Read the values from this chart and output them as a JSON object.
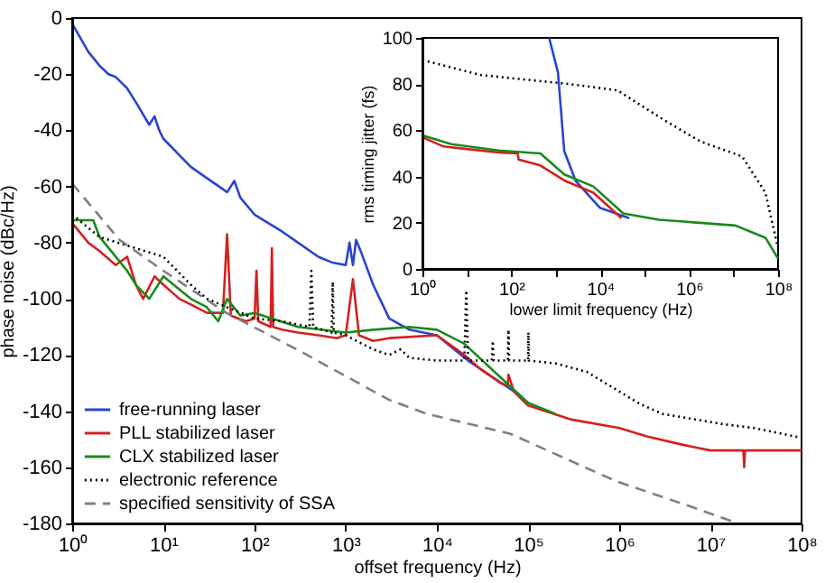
{
  "chart_data": [
    {
      "type": "line",
      "xlabel": "offset frequency (Hz)",
      "ylabel": "phase noise (dBc/Hz)",
      "log": "x",
      "grid": false,
      "legend": "bottom left",
      "xlim": [
        1,
        100000000
      ],
      "ylim": [
        -180,
        0
      ],
      "xticks": [
        {
          "value": 1,
          "label": "10⁰"
        },
        {
          "value": 10,
          "label": "10¹"
        },
        {
          "value": 100,
          "label": "10²"
        },
        {
          "value": 1000,
          "label": "10³"
        },
        {
          "value": 10000,
          "label": "10⁴"
        },
        {
          "value": 100000,
          "label": "10⁵"
        },
        {
          "value": 1000000,
          "label": "10⁶"
        },
        {
          "value": 10000000,
          "label": "10⁷"
        },
        {
          "value": 100000000,
          "label": "10⁸"
        }
      ],
      "yticks": [
        -180,
        -160,
        -140,
        -120,
        -100,
        -80,
        -60,
        -40,
        -20,
        0
      ],
      "series": [
        {
          "name": "free-running laser",
          "color": "#2a44d0",
          "line_style": "solid",
          "x": [
            1,
            1.5,
            2,
            2.5,
            3,
            4,
            5,
            7,
            8,
            9,
            10,
            20,
            30,
            50,
            60,
            70,
            100,
            200,
            300,
            500,
            700,
            1000,
            1100,
            1200,
            1300,
            1500,
            2000,
            3000,
            5000,
            10000,
            22000,
            70000
          ],
          "values": [
            -2,
            -12,
            -17,
            -20,
            -21,
            -25,
            -30,
            -38,
            -35,
            -40,
            -43,
            -53,
            -57,
            -62,
            -58,
            -64,
            -70,
            -76,
            -80,
            -85,
            -87,
            -88,
            -80,
            -88,
            -79,
            -84,
            -95,
            -107,
            -111,
            -113,
            -122,
            -133
          ]
        },
        {
          "name": "PLL stabilized laser",
          "color": "#d42020",
          "line_style": "solid",
          "x": [
            1,
            1.5,
            2,
            3,
            4,
            5,
            6,
            8,
            10,
            15,
            20,
            30,
            45,
            50,
            55,
            80,
            100,
            105,
            110,
            150,
            155,
            160,
            200,
            300,
            500,
            800,
            1000,
            1200,
            1400,
            2000,
            3000,
            10000,
            20000,
            30000,
            50000,
            60000,
            61000,
            70000,
            100000,
            300000,
            1000000,
            2000000,
            5000000,
            10000000,
            23000000,
            23500000,
            24000000,
            100000000
          ],
          "values": [
            -73,
            -80,
            -83,
            -88,
            -85,
            -95,
            -100,
            -92,
            -95,
            -100,
            -102,
            -105,
            -105,
            -77,
            -106,
            -108,
            -107,
            -90,
            -108,
            -110,
            -82,
            -110,
            -111,
            -112,
            -113,
            -114,
            -113,
            -93,
            -113,
            -115,
            -114,
            -113,
            -120,
            -125,
            -130,
            -131,
            -127,
            -133,
            -138,
            -143,
            -146,
            -149,
            -152,
            -154,
            -154,
            -160,
            -154,
            -154
          ]
        },
        {
          "name": "CLX stabilized laser",
          "color": "#1a8a1a",
          "line_style": "solid",
          "x": [
            1,
            1.7,
            2,
            3,
            4,
            5,
            7,
            10,
            20,
            30,
            40,
            50,
            70,
            100,
            300,
            1000,
            2000,
            5000,
            10000,
            20000,
            50000,
            100000,
            200000
          ],
          "values": [
            -72,
            -72,
            -78,
            -85,
            -90,
            -95,
            -100,
            -92,
            -100,
            -103,
            -108,
            -100,
            -106,
            -105,
            -110,
            -112,
            -111,
            -110,
            -111,
            -116,
            -128,
            -137,
            -141
          ]
        },
        {
          "name": "electronic reference",
          "color": "#000000",
          "line_style": "dotted",
          "x": [
            1,
            2,
            5,
            10,
            20,
            30,
            50,
            100,
            200,
            400,
            420,
            440,
            700,
            720,
            740,
            1000,
            2000,
            3000,
            4000,
            5000,
            10000,
            20000,
            21000,
            22000,
            40000,
            41000,
            42000,
            60000,
            61000,
            62000,
            100000,
            101000,
            102000,
            200000,
            440000,
            1700000,
            3000000,
            13500000,
            30000000,
            100000000
          ],
          "values": [
            -70,
            -78,
            -82,
            -85,
            -95,
            -100,
            -103,
            -107,
            -108,
            -110,
            -90,
            -110,
            -112,
            -94,
            -112,
            -113,
            -118,
            -120,
            -118,
            -121,
            -122,
            -122,
            -97,
            -122,
            -122,
            -115,
            -122,
            -122,
            -111,
            -122,
            -122,
            -112,
            -122,
            -123,
            -126,
            -137.5,
            -141,
            -144.6,
            -146,
            -149.5
          ]
        },
        {
          "name": "specified sensitivity of SSA",
          "color": "#808080",
          "line_style": "dashed",
          "x": [
            1,
            3.3,
            10,
            49,
            290,
            3000,
            7800,
            63000,
            930000,
            5500000,
            13500000,
            20000000
          ],
          "values": [
            -59,
            -79,
            -90,
            -105,
            -118,
            -136,
            -141,
            -148,
            -165,
            -173.5,
            -178,
            -180
          ]
        }
      ]
    },
    {
      "type": "line",
      "xlabel": "lower limit frequency (Hz)",
      "ylabel": "rms timing jitter (fs)",
      "log": "x",
      "grid": false,
      "xlim": [
        1,
        100000000
      ],
      "ylim": [
        0,
        100
      ],
      "xticks": [
        {
          "value": 1,
          "label": "10⁰"
        },
        {
          "value": 10,
          "label": null
        },
        {
          "value": 100,
          "label": "10²"
        },
        {
          "value": 1000,
          "label": null
        },
        {
          "value": 10000,
          "label": "10⁴"
        },
        {
          "value": 100000,
          "label": null
        },
        {
          "value": 1000000,
          "label": "10⁶"
        },
        {
          "value": 10000000,
          "label": null
        },
        {
          "value": 100000000,
          "label": "10⁸"
        }
      ],
      "yticks": [
        0,
        20,
        40,
        60,
        80,
        100
      ],
      "series": [
        {
          "color": "#2a44d0",
          "line_style": "solid",
          "x": [
            710,
            1120,
            1550,
            2820,
            9800,
            45000
          ],
          "values": [
            100,
            85,
            51,
            38,
            26.5,
            22
          ]
        },
        {
          "color": "#d42020",
          "line_style": "solid",
          "x": [
            1,
            3,
            52,
            140,
            145,
            450,
            1550,
            7000,
            30000
          ],
          "values": [
            57,
            53,
            50.4,
            50,
            47.4,
            44.8,
            38.3,
            33,
            22
          ]
        },
        {
          "color": "#1a8a1a",
          "line_style": "solid",
          "x": [
            1,
            4.5,
            52,
            450,
            1550,
            7000,
            33000,
            210000,
            11000000,
            52000000,
            100000000
          ],
          "values": [
            57.8,
            54,
            51.3,
            50,
            40.9,
            35.7,
            24,
            21.3,
            18.8,
            13.5,
            4.5
          ]
        },
        {
          "color": "#000000",
          "line_style": "dotted",
          "x": [
            1,
            21,
            2100,
            24500,
            280000,
            1780000,
            15500000,
            52000000,
            98000000
          ],
          "values": [
            90.4,
            83.9,
            80,
            77.3,
            64.3,
            55.2,
            48.7,
            33,
            9.6
          ]
        }
      ]
    }
  ]
}
